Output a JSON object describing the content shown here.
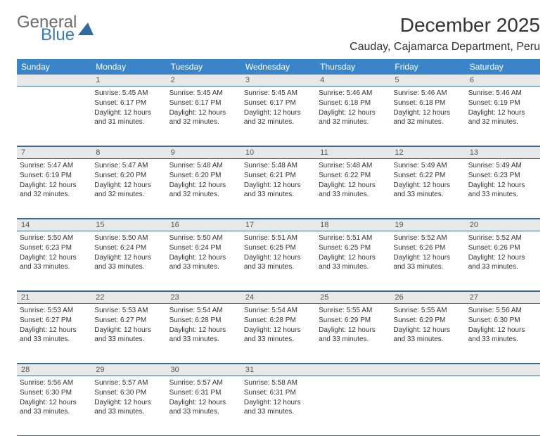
{
  "logo": {
    "word1": "General",
    "word2": "Blue"
  },
  "title": "December 2025",
  "location": "Cauday, Cajamarca Department, Peru",
  "colors": {
    "header_bg": "#3a85c9",
    "header_text": "#ffffff",
    "daynum_bg": "#e8e8e8",
    "border": "#2f6aa0",
    "text": "#333333"
  },
  "dayNames": [
    "Sunday",
    "Monday",
    "Tuesday",
    "Wednesday",
    "Thursday",
    "Friday",
    "Saturday"
  ],
  "weeks": [
    [
      {
        "n": "",
        "lines": []
      },
      {
        "n": "1",
        "lines": [
          "Sunrise: 5:45 AM",
          "Sunset: 6:17 PM",
          "Daylight: 12 hours and 31 minutes."
        ]
      },
      {
        "n": "2",
        "lines": [
          "Sunrise: 5:45 AM",
          "Sunset: 6:17 PM",
          "Daylight: 12 hours and 32 minutes."
        ]
      },
      {
        "n": "3",
        "lines": [
          "Sunrise: 5:45 AM",
          "Sunset: 6:17 PM",
          "Daylight: 12 hours and 32 minutes."
        ]
      },
      {
        "n": "4",
        "lines": [
          "Sunrise: 5:46 AM",
          "Sunset: 6:18 PM",
          "Daylight: 12 hours and 32 minutes."
        ]
      },
      {
        "n": "5",
        "lines": [
          "Sunrise: 5:46 AM",
          "Sunset: 6:18 PM",
          "Daylight: 12 hours and 32 minutes."
        ]
      },
      {
        "n": "6",
        "lines": [
          "Sunrise: 5:46 AM",
          "Sunset: 6:19 PM",
          "Daylight: 12 hours and 32 minutes."
        ]
      }
    ],
    [
      {
        "n": "7",
        "lines": [
          "Sunrise: 5:47 AM",
          "Sunset: 6:19 PM",
          "Daylight: 12 hours and 32 minutes."
        ]
      },
      {
        "n": "8",
        "lines": [
          "Sunrise: 5:47 AM",
          "Sunset: 6:20 PM",
          "Daylight: 12 hours and 32 minutes."
        ]
      },
      {
        "n": "9",
        "lines": [
          "Sunrise: 5:48 AM",
          "Sunset: 6:20 PM",
          "Daylight: 12 hours and 32 minutes."
        ]
      },
      {
        "n": "10",
        "lines": [
          "Sunrise: 5:48 AM",
          "Sunset: 6:21 PM",
          "Daylight: 12 hours and 33 minutes."
        ]
      },
      {
        "n": "11",
        "lines": [
          "Sunrise: 5:48 AM",
          "Sunset: 6:22 PM",
          "Daylight: 12 hours and 33 minutes."
        ]
      },
      {
        "n": "12",
        "lines": [
          "Sunrise: 5:49 AM",
          "Sunset: 6:22 PM",
          "Daylight: 12 hours and 33 minutes."
        ]
      },
      {
        "n": "13",
        "lines": [
          "Sunrise: 5:49 AM",
          "Sunset: 6:23 PM",
          "Daylight: 12 hours and 33 minutes."
        ]
      }
    ],
    [
      {
        "n": "14",
        "lines": [
          "Sunrise: 5:50 AM",
          "Sunset: 6:23 PM",
          "Daylight: 12 hours and 33 minutes."
        ]
      },
      {
        "n": "15",
        "lines": [
          "Sunrise: 5:50 AM",
          "Sunset: 6:24 PM",
          "Daylight: 12 hours and 33 minutes."
        ]
      },
      {
        "n": "16",
        "lines": [
          "Sunrise: 5:50 AM",
          "Sunset: 6:24 PM",
          "Daylight: 12 hours and 33 minutes."
        ]
      },
      {
        "n": "17",
        "lines": [
          "Sunrise: 5:51 AM",
          "Sunset: 6:25 PM",
          "Daylight: 12 hours and 33 minutes."
        ]
      },
      {
        "n": "18",
        "lines": [
          "Sunrise: 5:51 AM",
          "Sunset: 6:25 PM",
          "Daylight: 12 hours and 33 minutes."
        ]
      },
      {
        "n": "19",
        "lines": [
          "Sunrise: 5:52 AM",
          "Sunset: 6:26 PM",
          "Daylight: 12 hours and 33 minutes."
        ]
      },
      {
        "n": "20",
        "lines": [
          "Sunrise: 5:52 AM",
          "Sunset: 6:26 PM",
          "Daylight: 12 hours and 33 minutes."
        ]
      }
    ],
    [
      {
        "n": "21",
        "lines": [
          "Sunrise: 5:53 AM",
          "Sunset: 6:27 PM",
          "Daylight: 12 hours and 33 minutes."
        ]
      },
      {
        "n": "22",
        "lines": [
          "Sunrise: 5:53 AM",
          "Sunset: 6:27 PM",
          "Daylight: 12 hours and 33 minutes."
        ]
      },
      {
        "n": "23",
        "lines": [
          "Sunrise: 5:54 AM",
          "Sunset: 6:28 PM",
          "Daylight: 12 hours and 33 minutes."
        ]
      },
      {
        "n": "24",
        "lines": [
          "Sunrise: 5:54 AM",
          "Sunset: 6:28 PM",
          "Daylight: 12 hours and 33 minutes."
        ]
      },
      {
        "n": "25",
        "lines": [
          "Sunrise: 5:55 AM",
          "Sunset: 6:29 PM",
          "Daylight: 12 hours and 33 minutes."
        ]
      },
      {
        "n": "26",
        "lines": [
          "Sunrise: 5:55 AM",
          "Sunset: 6:29 PM",
          "Daylight: 12 hours and 33 minutes."
        ]
      },
      {
        "n": "27",
        "lines": [
          "Sunrise: 5:56 AM",
          "Sunset: 6:30 PM",
          "Daylight: 12 hours and 33 minutes."
        ]
      }
    ],
    [
      {
        "n": "28",
        "lines": [
          "Sunrise: 5:56 AM",
          "Sunset: 6:30 PM",
          "Daylight: 12 hours and 33 minutes."
        ]
      },
      {
        "n": "29",
        "lines": [
          "Sunrise: 5:57 AM",
          "Sunset: 6:30 PM",
          "Daylight: 12 hours and 33 minutes."
        ]
      },
      {
        "n": "30",
        "lines": [
          "Sunrise: 5:57 AM",
          "Sunset: 6:31 PM",
          "Daylight: 12 hours and 33 minutes."
        ]
      },
      {
        "n": "31",
        "lines": [
          "Sunrise: 5:58 AM",
          "Sunset: 6:31 PM",
          "Daylight: 12 hours and 33 minutes."
        ]
      },
      {
        "n": "",
        "lines": []
      },
      {
        "n": "",
        "lines": []
      },
      {
        "n": "",
        "lines": []
      }
    ]
  ]
}
